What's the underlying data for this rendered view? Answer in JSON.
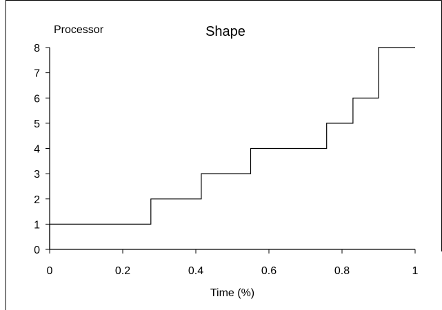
{
  "chart_data": {
    "type": "line",
    "step": true,
    "title": "Shape",
    "ylabel": "Processor",
    "xlabel": "Time (%)",
    "xlim": [
      0,
      1
    ],
    "ylim": [
      0,
      8
    ],
    "xticks": [
      "0",
      "0.2",
      "0.4",
      "0.6",
      "0.8",
      "1"
    ],
    "xtick_values": [
      0,
      0.2,
      0.4,
      0.6,
      0.8,
      1
    ],
    "yticks": [
      "0",
      "1",
      "2",
      "3",
      "4",
      "5",
      "6",
      "7",
      "8"
    ],
    "ytick_values": [
      0,
      1,
      2,
      3,
      4,
      5,
      6,
      7,
      8
    ],
    "grid": false,
    "series": [
      {
        "color": "#000000",
        "x": [
          0,
          0,
          0.277,
          0.277,
          0.415,
          0.415,
          0.55,
          0.55,
          0.758,
          0.758,
          0.83,
          0.83,
          0.9,
          0.9,
          1
        ],
        "y": [
          0,
          1,
          1,
          2,
          2,
          3,
          3,
          4,
          4,
          5,
          5,
          6,
          6,
          8,
          8
        ]
      }
    ]
  }
}
